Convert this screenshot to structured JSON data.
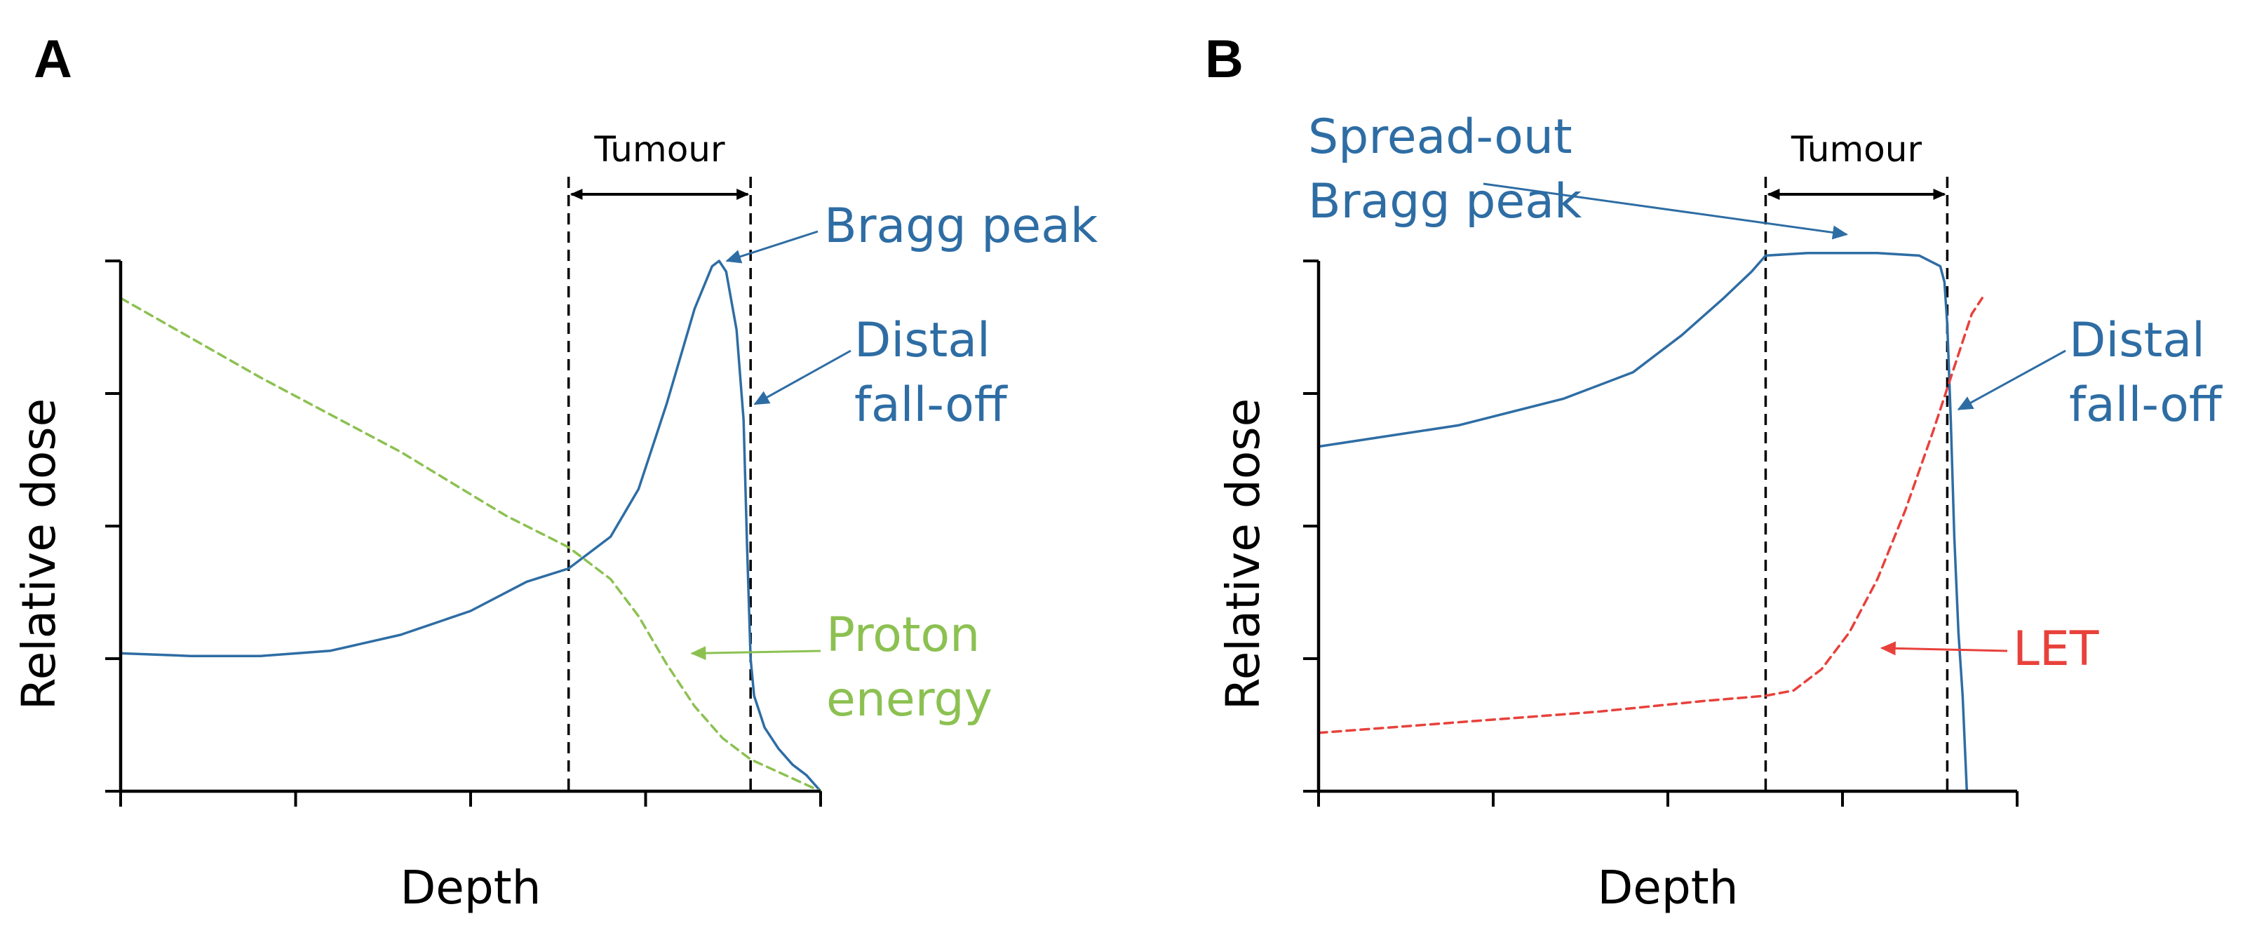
{
  "colors": {
    "dose": "#2e6da4",
    "energy": "#8cc152",
    "let": "#e8413b",
    "axis": "#000000"
  },
  "chart_data": [
    {
      "panel": "A",
      "type": "line",
      "xlabel": "Depth",
      "ylabel": "Relative dose",
      "xlim": [
        0,
        100
      ],
      "ylim": [
        0,
        100
      ],
      "x_ticks": [
        0,
        25,
        50,
        75,
        100
      ],
      "y_ticks": [
        0,
        25,
        50,
        75,
        100
      ],
      "tick_labels_shown": false,
      "region": {
        "label": "Tumour",
        "start": 64,
        "end": 90
      },
      "series": [
        {
          "name": "Relative dose",
          "style": "solid",
          "color": "dose",
          "points": [
            [
              0,
              26
            ],
            [
              10,
              25.5
            ],
            [
              20,
              25.5
            ],
            [
              30,
              26.5
            ],
            [
              40,
              29.5
            ],
            [
              50,
              34
            ],
            [
              58,
              39.5
            ],
            [
              64,
              42
            ],
            [
              70,
              48
            ],
            [
              74,
              57
            ],
            [
              78,
              73
            ],
            [
              82,
              91
            ],
            [
              84.5,
              99
            ],
            [
              85.5,
              100
            ],
            [
              86.5,
              98
            ],
            [
              88,
              87
            ],
            [
              89,
              70
            ],
            [
              89.5,
              46
            ],
            [
              90,
              25
            ],
            [
              90.5,
              18
            ],
            [
              92,
              12
            ],
            [
              94,
              8
            ],
            [
              96,
              5
            ],
            [
              98,
              3
            ],
            [
              100,
              0
            ]
          ]
        },
        {
          "name": "Proton energy",
          "style": "dashed",
          "color": "energy",
          "points": [
            [
              0,
              93
            ],
            [
              20,
              78
            ],
            [
              40,
              64
            ],
            [
              55,
              52
            ],
            [
              64,
              46
            ],
            [
              70,
              40
            ],
            [
              74,
              33
            ],
            [
              78,
              24
            ],
            [
              82,
              16
            ],
            [
              86,
              10
            ],
            [
              90,
              6
            ],
            [
              95,
              3
            ],
            [
              100,
              0
            ]
          ]
        }
      ],
      "annotations": [
        {
          "text": [
            "Bragg peak"
          ],
          "color": "dose",
          "target": [
            86,
            100
          ]
        },
        {
          "text": [
            "Distal",
            "fall-off"
          ],
          "color": "dose",
          "target": [
            90,
            73
          ]
        },
        {
          "text": [
            "Proton",
            "energy"
          ],
          "color": "energy",
          "target": [
            81,
            26
          ]
        }
      ]
    },
    {
      "panel": "B",
      "type": "line",
      "xlabel": "Depth",
      "ylabel": "Relative dose",
      "xlim": [
        0,
        100
      ],
      "ylim": [
        0,
        100
      ],
      "x_ticks": [
        0,
        25,
        50,
        75,
        100
      ],
      "y_ticks": [
        0,
        25,
        50,
        75,
        100
      ],
      "tick_labels_shown": false,
      "region": {
        "label": "Tumour",
        "start": 64,
        "end": 90
      },
      "series": [
        {
          "name": "Relative dose",
          "style": "solid",
          "color": "dose",
          "points": [
            [
              0,
              65
            ],
            [
              20,
              69
            ],
            [
              35,
              74
            ],
            [
              45,
              79
            ],
            [
              52,
              86
            ],
            [
              58,
              93
            ],
            [
              62,
              98
            ],
            [
              64,
              101
            ],
            [
              70,
              101.5
            ],
            [
              80,
              101.5
            ],
            [
              86,
              101
            ],
            [
              89,
              99
            ],
            [
              89.6,
              96
            ],
            [
              90,
              88
            ],
            [
              90.5,
              70
            ],
            [
              91,
              48
            ],
            [
              91.6,
              30
            ],
            [
              92.2,
              18
            ],
            [
              92.8,
              0
            ]
          ]
        },
        {
          "name": "LET",
          "style": "dashed",
          "color": "let",
          "points": [
            [
              0,
              11
            ],
            [
              20,
              13
            ],
            [
              40,
              15
            ],
            [
              55,
              17
            ],
            [
              64,
              18
            ],
            [
              68,
              19
            ],
            [
              72,
              23
            ],
            [
              76,
              30
            ],
            [
              80,
              40
            ],
            [
              84,
              53
            ],
            [
              88,
              68
            ],
            [
              91,
              80
            ],
            [
              93.5,
              90
            ],
            [
              95,
              93
            ]
          ]
        }
      ],
      "annotations": [
        {
          "text": [
            "Spread-out",
            "Bragg peak"
          ],
          "color": "dose",
          "target": [
            75,
            105
          ]
        },
        {
          "text": [
            "Distal",
            "fall-off"
          ],
          "color": "dose",
          "target": [
            91,
            72
          ]
        },
        {
          "text": [
            "LET"
          ],
          "color": "let",
          "target": [
            80,
            27
          ]
        }
      ]
    }
  ]
}
